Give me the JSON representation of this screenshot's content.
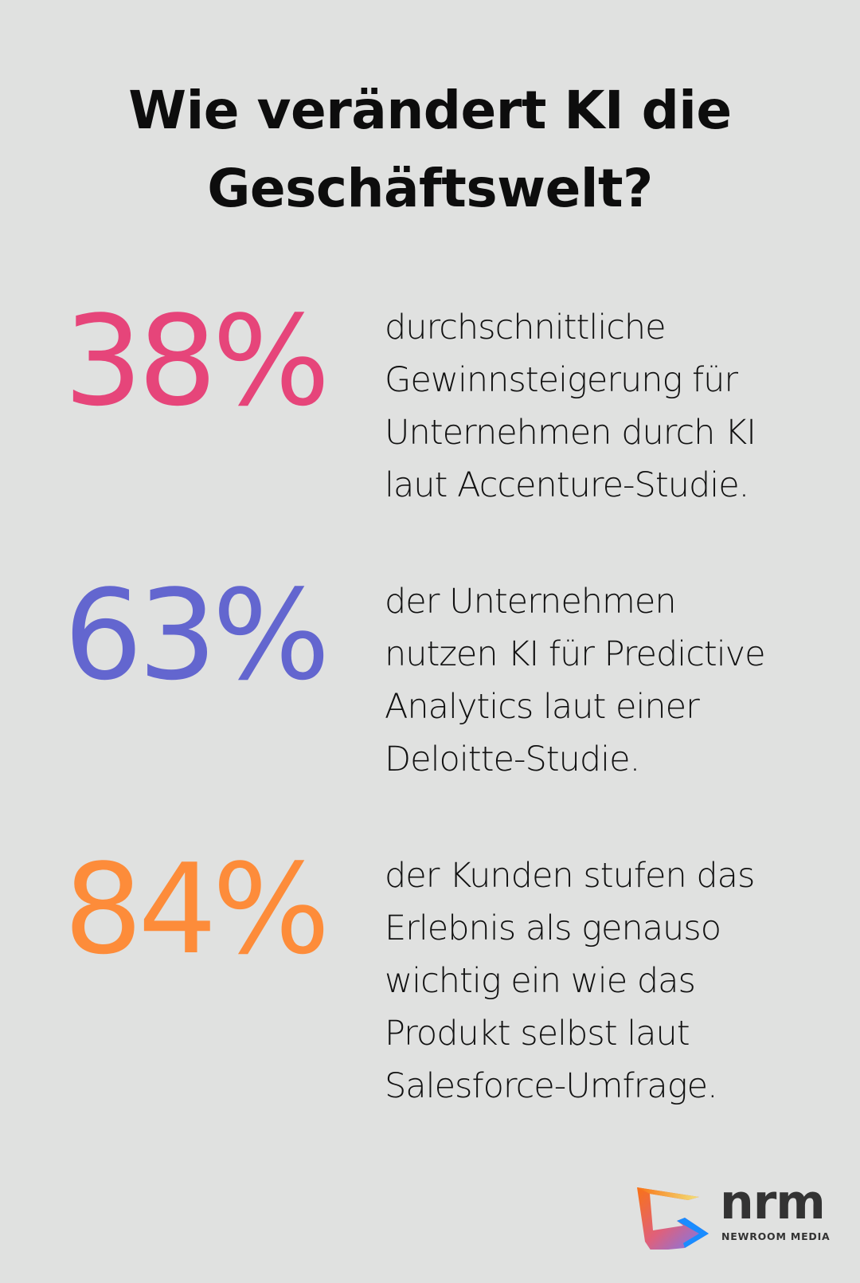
{
  "title": {
    "line1": "Wie verändert KI die",
    "line2": "Geschäftswelt?"
  },
  "stats": [
    {
      "value": "38%",
      "color": "#e6457a",
      "lines": [
        "durchschnittliche",
        "Gewinnsteigerung für",
        "Unternehmen durch KI",
        "laut Accenture-Studie."
      ]
    },
    {
      "value": "63%",
      "color": "#6366cf",
      "lines": [
        "der Unternehmen",
        "nutzen KI für Predictive",
        "Analytics laut einer",
        "Deloitte-Studie."
      ]
    },
    {
      "value": "84%",
      "color": "#fd8c3a",
      "lines": [
        "der Kunden stufen das",
        "Erlebnis als genauso",
        "wichtig ein wie das",
        "Produkt selbst laut",
        "Salesforce-Umfrage."
      ]
    }
  ],
  "logo": {
    "wordmark": "nrm",
    "subtitle": "NEWROOM MEDIA",
    "icon": "nrm-logo-icon"
  }
}
